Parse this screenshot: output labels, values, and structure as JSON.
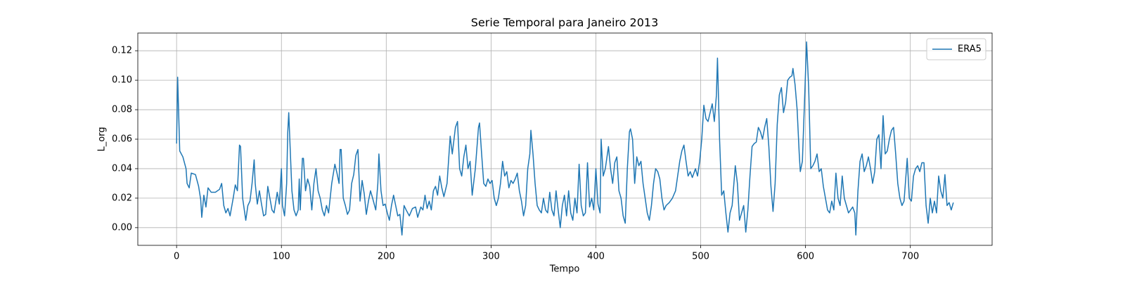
{
  "chart_data": {
    "type": "line",
    "title": "Serie Temporal para Janeiro 2013",
    "x_label": "Tempo",
    "y_label": "L_org",
    "xlim": [
      -37,
      778
    ],
    "ylim": [
      -0.012,
      0.132
    ],
    "xticks": [
      0,
      100,
      200,
      300,
      400,
      500,
      600,
      700
    ],
    "yticks": [
      {
        "value": 0,
        "label": "0.00"
      },
      {
        "value": 0.02,
        "label": "0.02"
      },
      {
        "value": 0.04,
        "label": "0.04"
      },
      {
        "value": 0.06,
        "label": "0.06"
      },
      {
        "value": 0.08,
        "label": "0.08"
      },
      {
        "value": 0.1,
        "label": "0.10"
      },
      {
        "value": 0.12,
        "label": "0.12"
      }
    ],
    "grid": true,
    "legend_loc": "upper right",
    "x": [
      0,
      1,
      3,
      6,
      9,
      10,
      12,
      14,
      18,
      21,
      23,
      24,
      26,
      28,
      30,
      33,
      37,
      41,
      43,
      45,
      47,
      49,
      51,
      54,
      56,
      58,
      59,
      60,
      61,
      63,
      65,
      66,
      68,
      70,
      72,
      74,
      75,
      77,
      79,
      81,
      83,
      85,
      87,
      89,
      91,
      93,
      96,
      98,
      100,
      101,
      103,
      105,
      106,
      107,
      108,
      110,
      112,
      114,
      116,
      117,
      118,
      120,
      121,
      123,
      125,
      127,
      129,
      131,
      133,
      135,
      137,
      139,
      141,
      143,
      145,
      148,
      151,
      153,
      155,
      156,
      157,
      159,
      161,
      163,
      165,
      167,
      169,
      171,
      173,
      175,
      177,
      179,
      181,
      183,
      185,
      187,
      190,
      192,
      193,
      195,
      197,
      199,
      201,
      203,
      205,
      207,
      209,
      211,
      213,
      215,
      217,
      219,
      222,
      225,
      228,
      230,
      233,
      235,
      237,
      239,
      241,
      243,
      245,
      247,
      249,
      251,
      253,
      255,
      258,
      261,
      263,
      266,
      268,
      270,
      272,
      274,
      276,
      278,
      280,
      282,
      285,
      288,
      289,
      291,
      293,
      295,
      297,
      299,
      301,
      303,
      305,
      307,
      309,
      311,
      313,
      315,
      317,
      319,
      321,
      323,
      325,
      327,
      329,
      331,
      333,
      335,
      337,
      338,
      340,
      342,
      344,
      346,
      348,
      350,
      352,
      354,
      356,
      358,
      360,
      362,
      364,
      366,
      368,
      370,
      372,
      374,
      376,
      378,
      380,
      382,
      384,
      386,
      388,
      390,
      392,
      394,
      396,
      398,
      400,
      402,
      404,
      405,
      407,
      409,
      412,
      414,
      416,
      418,
      420,
      422,
      424,
      426,
      428,
      430,
      432,
      433,
      435,
      437,
      439,
      441,
      443,
      445,
      447,
      449,
      451,
      453,
      455,
      457,
      459,
      461,
      463,
      465,
      467,
      470,
      473,
      476,
      478,
      480,
      482,
      484,
      486,
      488,
      490,
      492,
      495,
      497,
      499,
      501,
      503,
      505,
      507,
      509,
      511,
      513,
      515,
      516,
      518,
      520,
      522,
      524,
      526,
      528,
      530,
      533,
      535,
      537,
      539,
      541,
      543,
      545,
      547,
      549,
      551,
      553,
      555,
      557,
      559,
      561,
      563,
      565,
      567,
      569,
      571,
      573,
      575,
      577,
      579,
      581,
      583,
      585,
      587,
      588,
      590,
      592,
      594,
      595,
      597,
      599,
      601,
      603,
      605,
      607,
      609,
      611,
      613,
      615,
      617,
      619,
      621,
      623,
      625,
      627,
      629,
      631,
      633,
      635,
      637,
      639,
      641,
      643,
      645,
      647,
      648,
      650,
      652,
      654,
      656,
      658,
      660,
      662,
      664,
      666,
      668,
      670,
      672,
      674,
      676,
      678,
      680,
      682,
      684,
      686,
      688,
      690,
      692,
      694,
      697,
      699,
      701,
      703,
      705,
      707,
      709,
      711,
      713,
      715,
      717,
      719,
      721,
      723,
      725,
      727,
      729,
      731,
      733,
      735,
      737,
      739,
      741
    ],
    "series": [
      {
        "name": "ERA5",
        "color": "#1f77b4",
        "values": [
          0.057,
          0.102,
          0.052,
          0.048,
          0.04,
          0.03,
          0.027,
          0.037,
          0.036,
          0.028,
          0.019,
          0.007,
          0.022,
          0.014,
          0.027,
          0.024,
          0.024,
          0.026,
          0.03,
          0.015,
          0.01,
          0.013,
          0.008,
          0.02,
          0.029,
          0.025,
          0.04,
          0.056,
          0.055,
          0.02,
          0.01,
          0.005,
          0.015,
          0.018,
          0.03,
          0.046,
          0.03,
          0.016,
          0.025,
          0.016,
          0.008,
          0.009,
          0.028,
          0.02,
          0.012,
          0.01,
          0.024,
          0.016,
          0.04,
          0.015,
          0.008,
          0.03,
          0.064,
          0.078,
          0.06,
          0.025,
          0.012,
          0.008,
          0.012,
          0.033,
          0.012,
          0.047,
          0.047,
          0.025,
          0.033,
          0.028,
          0.012,
          0.03,
          0.04,
          0.025,
          0.02,
          0.012,
          0.008,
          0.015,
          0.01,
          0.03,
          0.043,
          0.037,
          0.03,
          0.053,
          0.053,
          0.02,
          0.015,
          0.009,
          0.012,
          0.03,
          0.036,
          0.049,
          0.053,
          0.018,
          0.032,
          0.023,
          0.009,
          0.018,
          0.025,
          0.02,
          0.012,
          0.03,
          0.05,
          0.025,
          0.015,
          0.016,
          0.01,
          0.005,
          0.015,
          0.022,
          0.015,
          0.008,
          0.009,
          -0.005,
          0.015,
          0.012,
          0.008,
          0.013,
          0.014,
          0.007,
          0.014,
          0.012,
          0.022,
          0.013,
          0.018,
          0.012,
          0.025,
          0.028,
          0.022,
          0.035,
          0.027,
          0.021,
          0.03,
          0.062,
          0.05,
          0.068,
          0.072,
          0.04,
          0.035,
          0.048,
          0.056,
          0.04,
          0.045,
          0.022,
          0.04,
          0.068,
          0.071,
          0.05,
          0.03,
          0.028,
          0.033,
          0.03,
          0.032,
          0.02,
          0.015,
          0.02,
          0.03,
          0.045,
          0.035,
          0.038,
          0.027,
          0.032,
          0.03,
          0.033,
          0.037,
          0.025,
          0.018,
          0.008,
          0.015,
          0.04,
          0.05,
          0.066,
          0.05,
          0.03,
          0.015,
          0.012,
          0.01,
          0.02,
          0.012,
          0.01,
          0.024,
          0.012,
          0.008,
          0.025,
          0.012,
          0.0,
          0.015,
          0.022,
          0.008,
          0.025,
          0.01,
          0.005,
          0.02,
          0.01,
          0.043,
          0.015,
          0.008,
          0.01,
          0.044,
          0.014,
          0.02,
          0.012,
          0.04,
          0.016,
          0.01,
          0.06,
          0.035,
          0.04,
          0.055,
          0.04,
          0.03,
          0.044,
          0.048,
          0.025,
          0.02,
          0.008,
          0.003,
          0.04,
          0.065,
          0.067,
          0.06,
          0.03,
          0.048,
          0.042,
          0.045,
          0.03,
          0.02,
          0.01,
          0.005,
          0.015,
          0.03,
          0.04,
          0.038,
          0.033,
          0.02,
          0.012,
          0.015,
          0.017,
          0.02,
          0.025,
          0.035,
          0.045,
          0.052,
          0.056,
          0.045,
          0.035,
          0.038,
          0.034,
          0.04,
          0.035,
          0.045,
          0.06,
          0.083,
          0.074,
          0.072,
          0.078,
          0.084,
          0.072,
          0.09,
          0.115,
          0.06,
          0.022,
          0.025,
          0.01,
          -0.003,
          0.01,
          0.015,
          0.042,
          0.03,
          0.005,
          0.01,
          0.015,
          -0.003,
          0.012,
          0.035,
          0.055,
          0.057,
          0.058,
          0.068,
          0.065,
          0.06,
          0.068,
          0.074,
          0.055,
          0.028,
          0.011,
          0.03,
          0.07,
          0.09,
          0.095,
          0.078,
          0.085,
          0.1,
          0.102,
          0.103,
          0.108,
          0.097,
          0.08,
          0.05,
          0.038,
          0.045,
          0.085,
          0.126,
          0.095,
          0.04,
          0.042,
          0.045,
          0.05,
          0.038,
          0.04,
          0.028,
          0.02,
          0.012,
          0.01,
          0.018,
          0.012,
          0.037,
          0.02,
          0.015,
          0.035,
          0.02,
          0.015,
          0.01,
          0.012,
          0.014,
          0.01,
          -0.005,
          0.025,
          0.045,
          0.05,
          0.038,
          0.042,
          0.048,
          0.04,
          0.03,
          0.038,
          0.06,
          0.063,
          0.04,
          0.076,
          0.05,
          0.052,
          0.06,
          0.066,
          0.068,
          0.05,
          0.03,
          0.02,
          0.015,
          0.018,
          0.047,
          0.02,
          0.018,
          0.035,
          0.04,
          0.042,
          0.038,
          0.044,
          0.044,
          0.015,
          0.003,
          0.02,
          0.01,
          0.018,
          0.01,
          0.035,
          0.025,
          0.02,
          0.036,
          0.015,
          0.017,
          0.012,
          0.017
        ]
      }
    ]
  }
}
